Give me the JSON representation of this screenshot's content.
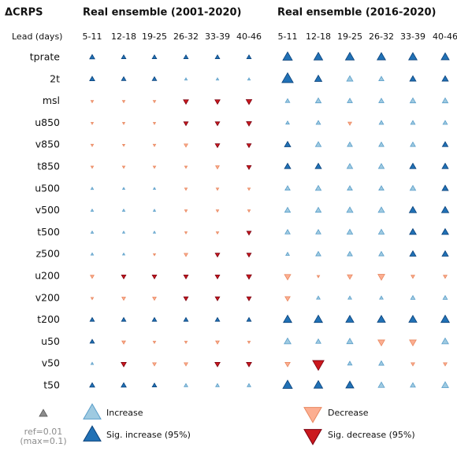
{
  "chart_data": {
    "type": "triangle-grid",
    "title": "ΔCRPS",
    "lead_label": "Lead (days)",
    "categories": [
      "5-11",
      "12-18",
      "19-25",
      "26-32",
      "33-39",
      "40-46"
    ],
    "rows": [
      "tprate",
      "2t",
      "msl",
      "u850",
      "v850",
      "t850",
      "u500",
      "v500",
      "t500",
      "z500",
      "u200",
      "v200",
      "t200",
      "u50",
      "v50",
      "t50"
    ],
    "ref": {
      "value": 0.01,
      "label": "ref=0.01"
    },
    "max": {
      "value": 0.1,
      "label": "(max=0.1)"
    },
    "ref_color": "#8c8c8c",
    "legend": [
      {
        "name": "Increase",
        "color": "#9ecae1",
        "edge": "#5a9ec9"
      },
      {
        "name": "Sig. increase (95%)",
        "color": "#2171b5",
        "edge": "#08407a"
      },
      {
        "name": "Decrease",
        "color": "#fcae91",
        "edge": "#e8875f"
      },
      {
        "name": "Sig. decrease (95%)",
        "color": "#cb181d",
        "edge": "#7a0010"
      }
    ],
    "panels": [
      {
        "title": "Real ensemble (2001-2020)",
        "values": [
          [
            0.004,
            0.003,
            0.003,
            0.003,
            0.003,
            0.003
          ],
          [
            0.004,
            0.003,
            0.003,
            0.001,
            0.001,
            0.001
          ],
          [
            -0.001,
            -0.001,
            -0.001,
            -0.004,
            -0.004,
            -0.005
          ],
          [
            -0.0008,
            -0.0008,
            -0.0008,
            -0.003,
            -0.003,
            -0.004
          ],
          [
            -0.001,
            -0.0008,
            -0.001,
            -0.002,
            -0.003,
            -0.003
          ],
          [
            -0.001,
            -0.001,
            -0.001,
            -0.001,
            -0.002,
            -0.003
          ],
          [
            0.001,
            0.0008,
            0.0008,
            -0.001,
            -0.001,
            -0.001
          ],
          [
            0.001,
            0.001,
            0.0008,
            -0.001,
            -0.001,
            -0.001
          ],
          [
            0.001,
            0.0008,
            0.0008,
            -0.0008,
            -0.001,
            -0.003
          ],
          [
            0.001,
            0.0008,
            -0.0008,
            -0.002,
            -0.003,
            -0.003
          ],
          [
            -0.002,
            -0.003,
            -0.003,
            -0.003,
            -0.003,
            -0.004
          ],
          [
            -0.001,
            -0.002,
            -0.002,
            -0.003,
            -0.003,
            -0.003
          ],
          [
            0.003,
            0.003,
            0.003,
            0.003,
            0.003,
            0.003
          ],
          [
            0.003,
            -0.002,
            -0.001,
            -0.001,
            -0.002,
            -0.001
          ],
          [
            0.001,
            -0.004,
            -0.002,
            -0.002,
            -0.004,
            -0.004
          ],
          [
            0.004,
            0.004,
            0.003,
            0.002,
            0.002,
            0.002
          ]
        ],
        "sig": [
          [
            1,
            1,
            1,
            1,
            1,
            1
          ],
          [
            1,
            1,
            1,
            0,
            0,
            0
          ],
          [
            0,
            0,
            0,
            1,
            1,
            1
          ],
          [
            0,
            0,
            0,
            1,
            1,
            1
          ],
          [
            0,
            0,
            0,
            0,
            1,
            1
          ],
          [
            0,
            0,
            0,
            0,
            0,
            1
          ],
          [
            0,
            0,
            0,
            0,
            0,
            0
          ],
          [
            0,
            0,
            0,
            0,
            0,
            0
          ],
          [
            0,
            0,
            0,
            0,
            0,
            1
          ],
          [
            0,
            0,
            0,
            0,
            1,
            1
          ],
          [
            0,
            1,
            1,
            1,
            1,
            1
          ],
          [
            0,
            0,
            0,
            1,
            1,
            1
          ],
          [
            1,
            1,
            1,
            1,
            1,
            1
          ],
          [
            1,
            0,
            0,
            0,
            0,
            0
          ],
          [
            0,
            1,
            0,
            0,
            1,
            1
          ],
          [
            1,
            1,
            1,
            0,
            0,
            0
          ]
        ]
      },
      {
        "title": "Real ensemble (2016-2020)",
        "values": [
          [
            0.014,
            0.012,
            0.012,
            0.011,
            0.011,
            0.01
          ],
          [
            0.02,
            0.008,
            0.006,
            0.004,
            0.006,
            0.006
          ],
          [
            0.003,
            0.005,
            0.004,
            0.004,
            0.005,
            0.005
          ],
          [
            0.002,
            0.003,
            -0.002,
            0.003,
            0.003,
            0.003
          ],
          [
            0.006,
            0.005,
            0.004,
            0.004,
            0.004,
            0.005
          ],
          [
            0.006,
            0.006,
            0.005,
            0.005,
            0.006,
            0.006
          ],
          [
            0.004,
            0.005,
            0.004,
            0.004,
            0.005,
            0.006
          ],
          [
            0.005,
            0.005,
            0.006,
            0.006,
            0.008,
            0.008
          ],
          [
            0.004,
            0.004,
            0.005,
            0.005,
            0.007,
            0.007
          ],
          [
            0.002,
            0.004,
            0.004,
            0.004,
            0.006,
            0.006
          ],
          [
            -0.006,
            -0.001,
            -0.004,
            -0.007,
            -0.002,
            -0.002
          ],
          [
            -0.004,
            0.002,
            0.002,
            0.002,
            0.003,
            0.003
          ],
          [
            0.011,
            0.011,
            0.01,
            0.01,
            0.01,
            0.011
          ],
          [
            0.007,
            0.004,
            0.006,
            -0.007,
            -0.007,
            0.007
          ],
          [
            -0.004,
            -0.02,
            0.003,
            0.004,
            -0.002,
            -0.002
          ],
          [
            0.014,
            0.012,
            0.01,
            0.006,
            0.004,
            0.007
          ]
        ],
        "sig": [
          [
            1,
            1,
            1,
            1,
            1,
            1
          ],
          [
            1,
            1,
            0,
            0,
            1,
            1
          ],
          [
            0,
            0,
            0,
            0,
            0,
            0
          ],
          [
            0,
            0,
            0,
            0,
            0,
            0
          ],
          [
            1,
            0,
            0,
            0,
            0,
            1
          ],
          [
            1,
            1,
            0,
            0,
            1,
            1
          ],
          [
            0,
            0,
            0,
            0,
            0,
            1
          ],
          [
            0,
            0,
            0,
            0,
            1,
            1
          ],
          [
            0,
            0,
            0,
            0,
            1,
            1
          ],
          [
            0,
            0,
            0,
            0,
            1,
            1
          ],
          [
            0,
            0,
            0,
            0,
            0,
            0
          ],
          [
            0,
            0,
            0,
            0,
            0,
            0
          ],
          [
            1,
            1,
            1,
            1,
            1,
            1
          ],
          [
            0,
            0,
            0,
            0,
            0,
            0
          ],
          [
            0,
            1,
            0,
            0,
            0,
            0
          ],
          [
            1,
            1,
            1,
            0,
            0,
            0
          ]
        ]
      }
    ]
  }
}
